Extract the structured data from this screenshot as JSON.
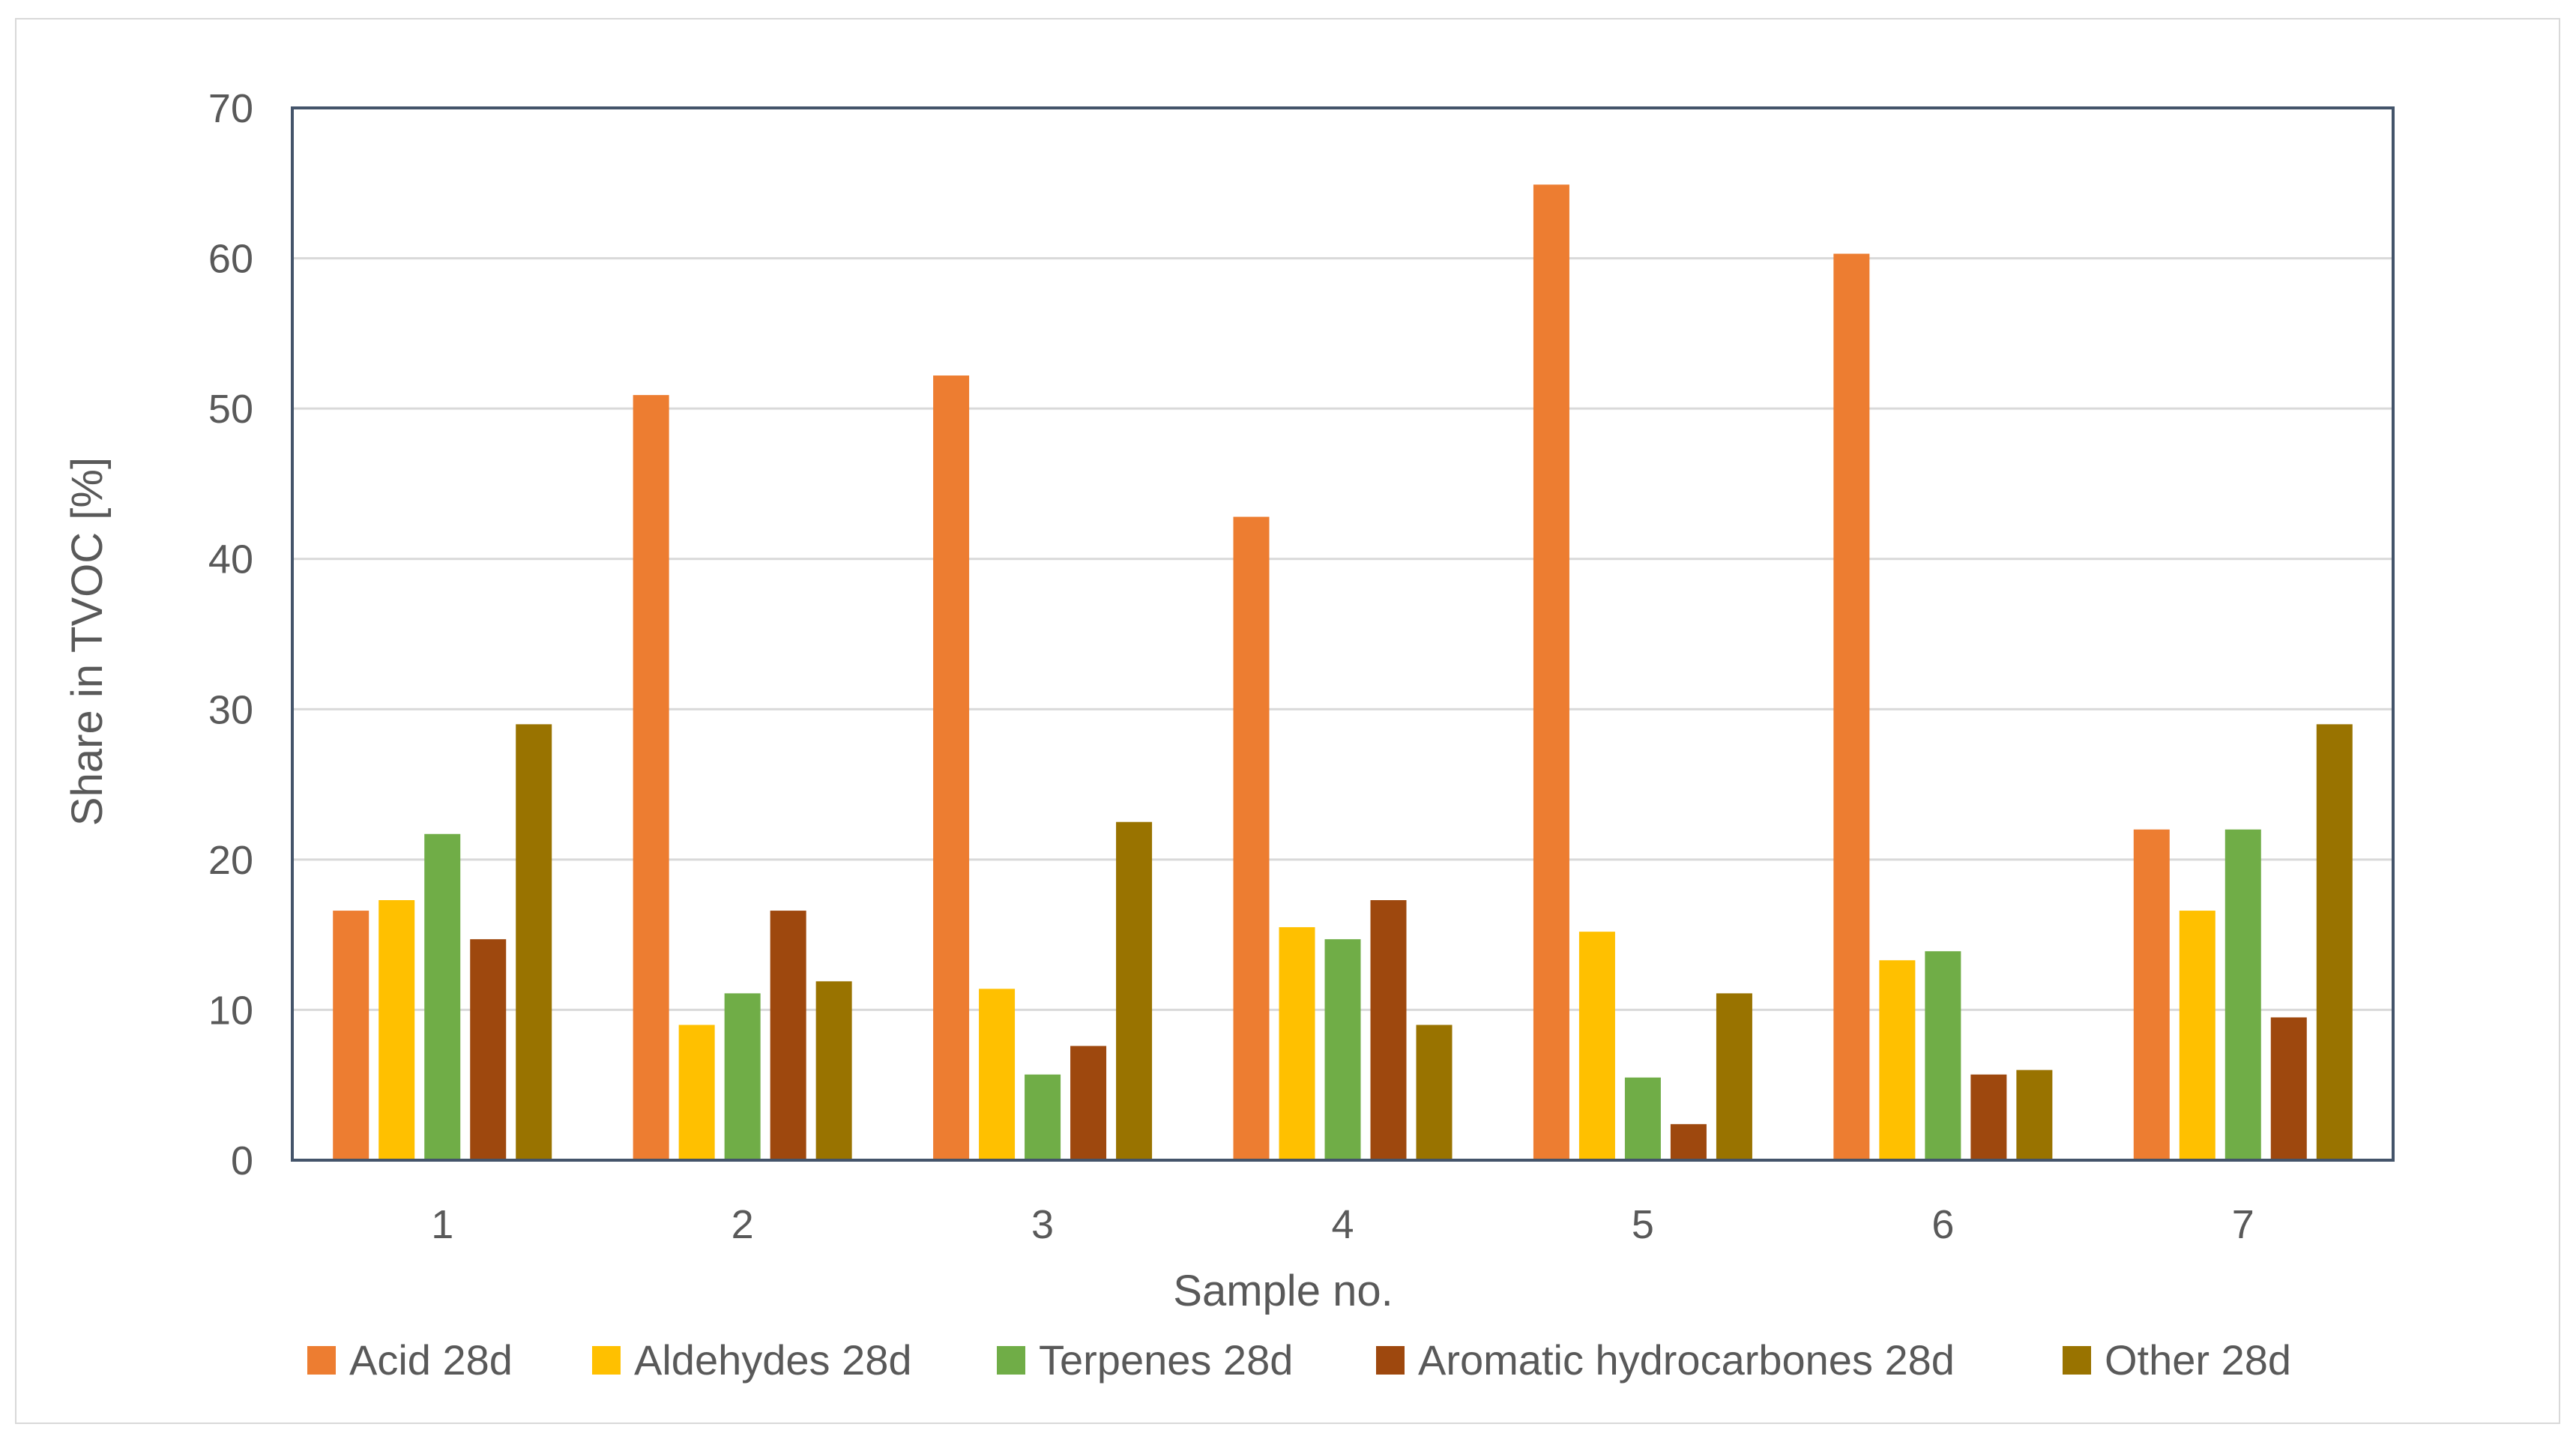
{
  "chart_data": {
    "type": "bar",
    "title": "",
    "xlabel": "Sample no.",
    "ylabel": "Share in TVOC [%]",
    "ylim": [
      0,
      70
    ],
    "yticks": [
      0,
      10,
      20,
      30,
      40,
      50,
      60,
      70
    ],
    "grid": true,
    "legend_position": "bottom",
    "categories": [
      "1",
      "2",
      "3",
      "4",
      "5",
      "6",
      "7"
    ],
    "series": [
      {
        "name": "Acid 28d",
        "color": "#ed7d31",
        "values": [
          16.6,
          50.9,
          52.2,
          42.8,
          64.9,
          60.3,
          22.0
        ]
      },
      {
        "name": "Aldehydes 28d",
        "color": "#ffc000",
        "values": [
          17.3,
          9.0,
          11.4,
          15.5,
          15.2,
          13.3,
          16.6
        ]
      },
      {
        "name": "Terpenes 28d",
        "color": "#70ad47",
        "values": [
          21.7,
          11.1,
          5.7,
          14.7,
          5.5,
          13.9,
          22.0
        ]
      },
      {
        "name": "Aromatic hydrocarbones 28d",
        "color": "#9e480e",
        "values": [
          14.7,
          16.6,
          7.6,
          17.3,
          2.4,
          5.7,
          9.5
        ]
      },
      {
        "name": "Other 28d",
        "color": "#997300",
        "values": [
          29.0,
          11.9,
          22.5,
          9.0,
          11.1,
          6.0,
          29.0
        ]
      }
    ]
  }
}
